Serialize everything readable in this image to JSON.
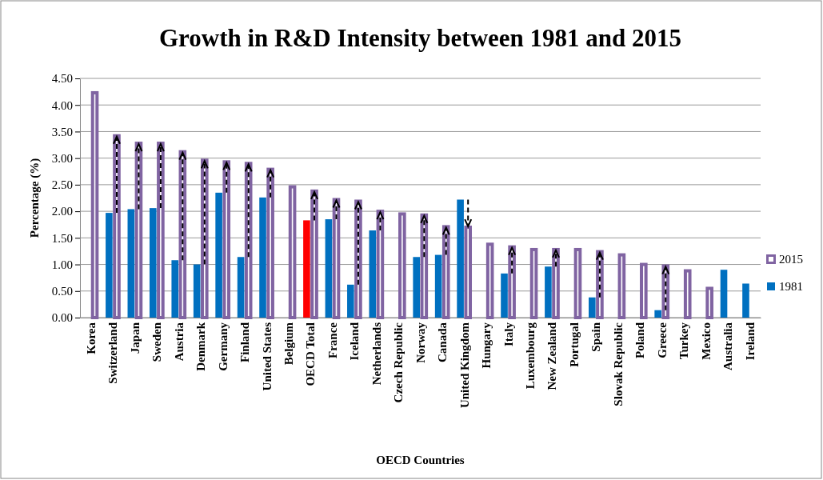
{
  "chart_data": {
    "type": "bar",
    "title": "Growth in R&D Intensity between 1981 and 2015",
    "xlabel": "OECD Countries",
    "ylabel": "Percentage (%)",
    "categories": [
      "Korea",
      "Switzerland",
      "Japan",
      "Sweden",
      "Austria",
      "Denmark",
      "Germany",
      "Finland",
      "United States",
      "Belgium",
      "OECD Total",
      "France",
      "Iceland",
      "Netherlands",
      "Czech Republic",
      "Norway",
      "Canada",
      "United Kingdom",
      "Hungary",
      "Italy",
      "Luxembourg",
      "New Zealand",
      "Portugal",
      "Spain",
      "Slovak Republic",
      "Poland",
      "Greece",
      "Turkey",
      "Mexico",
      "Australia",
      "Ireland"
    ],
    "series": [
      {
        "name": "2015",
        "color": "#8064a2",
        "values": [
          4.23,
          3.42,
          3.28,
          3.28,
          3.12,
          2.96,
          2.93,
          2.9,
          2.79,
          2.46,
          2.38,
          2.22,
          2.19,
          2.0,
          1.95,
          1.93,
          1.71,
          1.7,
          1.38,
          1.33,
          1.28,
          1.28,
          1.28,
          1.24,
          1.18,
          1.0,
          0.97,
          0.88,
          0.55,
          null,
          null
        ]
      },
      {
        "name": "1981",
        "color": "#0070c0",
        "colors": [
          null,
          "#0070c0",
          "#0070c0",
          "#0070c0",
          "#0070c0",
          "#0070c0",
          "#0070c0",
          "#0070c0",
          "#0070c0",
          null,
          "#ff0000",
          "#0070c0",
          "#0070c0",
          "#0070c0",
          null,
          "#0070c0",
          "#0070c0",
          "#0070c0",
          null,
          "#0070c0",
          null,
          "#0070c0",
          null,
          "#0070c0",
          null,
          null,
          "#0070c0",
          null,
          null,
          "#0070c0",
          "#0070c0"
        ],
        "values": [
          null,
          1.97,
          2.04,
          2.06,
          1.08,
          1.0,
          2.35,
          1.14,
          2.26,
          null,
          1.83,
          1.85,
          0.62,
          1.64,
          null,
          1.14,
          1.18,
          2.22,
          null,
          0.83,
          null,
          0.96,
          null,
          0.38,
          null,
          null,
          0.14,
          null,
          null,
          0.9,
          0.64
        ]
      }
    ],
    "ylim": [
      0,
      4.5
    ],
    "yticks": [
      {
        "value": 0,
        "label": "0.00"
      },
      {
        "value": 0.5,
        "label": "0.50"
      },
      {
        "value": 1,
        "label": "1.00"
      },
      {
        "value": 1.5,
        "label": "1.50"
      },
      {
        "value": 2,
        "label": "2.00"
      },
      {
        "value": 2.5,
        "label": "2.50"
      },
      {
        "value": 3,
        "label": "3.00"
      },
      {
        "value": 3.5,
        "label": "3.50"
      },
      {
        "value": 4,
        "label": "4.00"
      },
      {
        "value": 4.5,
        "label": "4.50"
      }
    ],
    "grid": "y",
    "legend": "right"
  }
}
